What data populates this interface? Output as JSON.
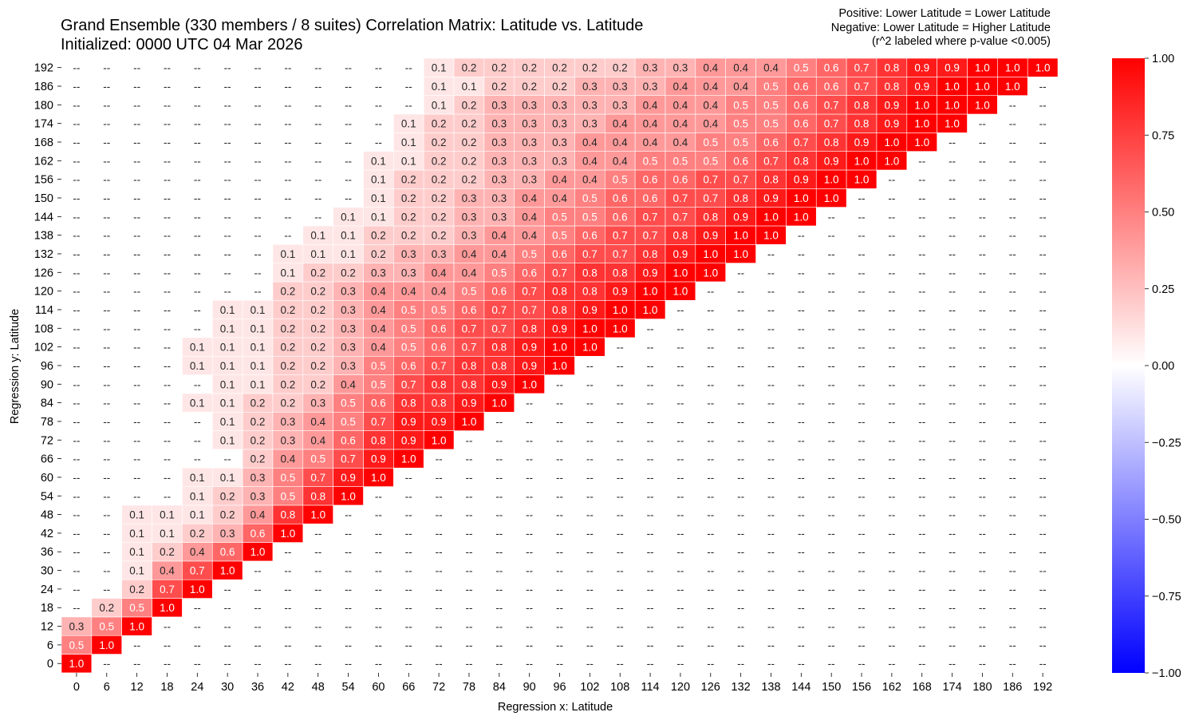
{
  "chart_data": {
    "type": "heatmap",
    "title": "Grand Ensemble (330 members / 8 suites) Correlation Matrix: Latitude vs. Latitude",
    "subtitle": "Initialized: 0000 UTC 04 Mar 2026",
    "annotation": [
      "Positive: Lower Latitude = Lower Latitude",
      "Negative: Lower Latitude = Higher Latitude",
      "(r^2 labeled where p-value <0.005)"
    ],
    "xlabel": "Regression x: Latitude",
    "ylabel": "Regression y: Latitude",
    "x": [
      0,
      6,
      12,
      18,
      24,
      30,
      36,
      42,
      48,
      54,
      60,
      66,
      72,
      78,
      84,
      90,
      96,
      102,
      108,
      114,
      120,
      126,
      132,
      138,
      144,
      150,
      156,
      162,
      168,
      174,
      180,
      186,
      192
    ],
    "y": [
      0,
      6,
      12,
      18,
      24,
      30,
      36,
      42,
      48,
      54,
      60,
      66,
      72,
      78,
      84,
      90,
      96,
      102,
      108,
      114,
      120,
      126,
      132,
      138,
      144,
      150,
      156,
      162,
      168,
      174,
      180,
      186,
      192
    ],
    "colorbar": {
      "vmin": -1.0,
      "vmax": 1.0,
      "ticks": [
        "1.00",
        "0.75",
        "0.50",
        "0.25",
        "0.00",
        "−0.25",
        "−0.50",
        "−0.75",
        "−1.00"
      ],
      "colors": [
        "#0000ff",
        "#ffffff",
        "#ff0000"
      ]
    },
    "blank_label": "--",
    "r2_labels": [
      [
        "1.0"
      ],
      [
        "0.5",
        "1.0"
      ],
      [
        "0.3",
        "0.5",
        "1.0"
      ],
      [
        "--",
        "0.2",
        "0.5",
        "1.0"
      ],
      [
        "--",
        "--",
        "0.2",
        "0.7",
        "1.0"
      ],
      [
        "--",
        "--",
        "0.1",
        "0.4",
        "0.7",
        "1.0"
      ],
      [
        "--",
        "--",
        "0.1",
        "0.2",
        "0.4",
        "0.6",
        "1.0"
      ],
      [
        "--",
        "--",
        "0.1",
        "0.1",
        "0.2",
        "0.3",
        "0.6",
        "1.0"
      ],
      [
        "--",
        "--",
        "0.1",
        "0.1",
        "0.1",
        "0.2",
        "0.4",
        "0.8",
        "1.0"
      ],
      [
        "--",
        "--",
        "--",
        "--",
        "0.1",
        "0.2",
        "0.3",
        "0.5",
        "0.8",
        "1.0"
      ],
      [
        "--",
        "--",
        "--",
        "--",
        "0.1",
        "0.1",
        "0.3",
        "0.5",
        "0.7",
        "0.9",
        "1.0"
      ],
      [
        "--",
        "--",
        "--",
        "--",
        "--",
        "--",
        "0.2",
        "0.4",
        "0.5",
        "0.7",
        "0.9",
        "1.0"
      ],
      [
        "--",
        "--",
        "--",
        "--",
        "--",
        "0.1",
        "0.2",
        "0.3",
        "0.4",
        "0.6",
        "0.8",
        "0.9",
        "1.0"
      ],
      [
        "--",
        "--",
        "--",
        "--",
        "--",
        "0.1",
        "0.2",
        "0.3",
        "0.4",
        "0.5",
        "0.7",
        "0.9",
        "0.9",
        "1.0"
      ],
      [
        "--",
        "--",
        "--",
        "--",
        "0.1",
        "0.1",
        "0.2",
        "0.2",
        "0.3",
        "0.5",
        "0.6",
        "0.8",
        "0.8",
        "0.9",
        "1.0"
      ],
      [
        "--",
        "--",
        "--",
        "--",
        "--",
        "0.1",
        "0.1",
        "0.2",
        "0.2",
        "0.4",
        "0.5",
        "0.7",
        "0.8",
        "0.8",
        "0.9",
        "1.0"
      ],
      [
        "--",
        "--",
        "--",
        "--",
        "0.1",
        "0.1",
        "0.1",
        "0.2",
        "0.2",
        "0.3",
        "0.5",
        "0.6",
        "0.7",
        "0.8",
        "0.8",
        "0.9",
        "1.0"
      ],
      [
        "--",
        "--",
        "--",
        "--",
        "0.1",
        "0.1",
        "0.1",
        "0.2",
        "0.2",
        "0.3",
        "0.4",
        "0.5",
        "0.6",
        "0.7",
        "0.8",
        "0.9",
        "1.0",
        "1.0"
      ],
      [
        "--",
        "--",
        "--",
        "--",
        "--",
        "0.1",
        "0.1",
        "0.2",
        "0.2",
        "0.3",
        "0.4",
        "0.5",
        "0.6",
        "0.7",
        "0.7",
        "0.8",
        "0.9",
        "1.0",
        "1.0"
      ],
      [
        "--",
        "--",
        "--",
        "--",
        "--",
        "0.1",
        "0.1",
        "0.2",
        "0.2",
        "0.3",
        "0.4",
        "0.5",
        "0.5",
        "0.6",
        "0.7",
        "0.7",
        "0.8",
        "0.9",
        "1.0",
        "1.0"
      ],
      [
        "--",
        "--",
        "--",
        "--",
        "--",
        "--",
        "--",
        "0.2",
        "0.2",
        "0.3",
        "0.4",
        "0.4",
        "0.4",
        "0.5",
        "0.6",
        "0.7",
        "0.8",
        "0.8",
        "0.9",
        "1.0",
        "1.0"
      ],
      [
        "--",
        "--",
        "--",
        "--",
        "--",
        "--",
        "--",
        "0.1",
        "0.2",
        "0.2",
        "0.3",
        "0.3",
        "0.4",
        "0.4",
        "0.5",
        "0.6",
        "0.7",
        "0.8",
        "0.8",
        "0.9",
        "1.0",
        "1.0"
      ],
      [
        "--",
        "--",
        "--",
        "--",
        "--",
        "--",
        "--",
        "0.1",
        "0.1",
        "0.1",
        "0.2",
        "0.3",
        "0.3",
        "0.4",
        "0.4",
        "0.5",
        "0.6",
        "0.7",
        "0.7",
        "0.8",
        "0.9",
        "1.0",
        "1.0"
      ],
      [
        "--",
        "--",
        "--",
        "--",
        "--",
        "--",
        "--",
        "--",
        "0.1",
        "0.1",
        "0.2",
        "0.2",
        "0.2",
        "0.3",
        "0.4",
        "0.4",
        "0.5",
        "0.6",
        "0.7",
        "0.7",
        "0.8",
        "0.9",
        "1.0",
        "1.0"
      ],
      [
        "--",
        "--",
        "--",
        "--",
        "--",
        "--",
        "--",
        "--",
        "--",
        "0.1",
        "0.1",
        "0.2",
        "0.2",
        "0.3",
        "0.3",
        "0.4",
        "0.5",
        "0.5",
        "0.6",
        "0.7",
        "0.7",
        "0.8",
        "0.9",
        "1.0",
        "1.0"
      ],
      [
        "--",
        "--",
        "--",
        "--",
        "--",
        "--",
        "--",
        "--",
        "--",
        "--",
        "0.1",
        "0.2",
        "0.2",
        "0.3",
        "0.3",
        "0.4",
        "0.4",
        "0.5",
        "0.6",
        "0.6",
        "0.7",
        "0.7",
        "0.8",
        "0.9",
        "1.0",
        "1.0"
      ],
      [
        "--",
        "--",
        "--",
        "--",
        "--",
        "--",
        "--",
        "--",
        "--",
        "--",
        "0.1",
        "0.2",
        "0.2",
        "0.2",
        "0.3",
        "0.3",
        "0.4",
        "0.4",
        "0.5",
        "0.6",
        "0.6",
        "0.7",
        "0.7",
        "0.8",
        "0.9",
        "1.0",
        "1.0"
      ],
      [
        "--",
        "--",
        "--",
        "--",
        "--",
        "--",
        "--",
        "--",
        "--",
        "--",
        "0.1",
        "0.1",
        "0.2",
        "0.2",
        "0.3",
        "0.3",
        "0.3",
        "0.4",
        "0.4",
        "0.5",
        "0.5",
        "0.5",
        "0.6",
        "0.7",
        "0.8",
        "0.9",
        "1.0",
        "1.0"
      ],
      [
        "--",
        "--",
        "--",
        "--",
        "--",
        "--",
        "--",
        "--",
        "--",
        "--",
        "--",
        "0.1",
        "0.2",
        "0.2",
        "0.3",
        "0.3",
        "0.3",
        "0.4",
        "0.4",
        "0.4",
        "0.4",
        "0.5",
        "0.5",
        "0.6",
        "0.7",
        "0.8",
        "0.9",
        "1.0",
        "1.0"
      ],
      [
        "--",
        "--",
        "--",
        "--",
        "--",
        "--",
        "--",
        "--",
        "--",
        "--",
        "--",
        "0.1",
        "0.2",
        "0.2",
        "0.3",
        "0.3",
        "0.3",
        "0.3",
        "0.4",
        "0.4",
        "0.4",
        "0.4",
        "0.5",
        "0.5",
        "0.6",
        "0.7",
        "0.8",
        "0.9",
        "1.0",
        "1.0"
      ],
      [
        "--",
        "--",
        "--",
        "--",
        "--",
        "--",
        "--",
        "--",
        "--",
        "--",
        "--",
        "--",
        "0.1",
        "0.2",
        "0.3",
        "0.3",
        "0.3",
        "0.3",
        "0.3",
        "0.4",
        "0.4",
        "0.4",
        "0.5",
        "0.5",
        "0.6",
        "0.7",
        "0.8",
        "0.9",
        "1.0",
        "1.0",
        "1.0"
      ],
      [
        "--",
        "--",
        "--",
        "--",
        "--",
        "--",
        "--",
        "--",
        "--",
        "--",
        "--",
        "--",
        "0.1",
        "0.1",
        "0.2",
        "0.2",
        "0.2",
        "0.3",
        "0.3",
        "0.3",
        "0.4",
        "0.4",
        "0.4",
        "0.5",
        "0.6",
        "0.6",
        "0.7",
        "0.8",
        "0.9",
        "1.0",
        "1.0",
        "1.0"
      ],
      [
        "--",
        "--",
        "--",
        "--",
        "--",
        "--",
        "--",
        "--",
        "--",
        "--",
        "--",
        "--",
        "0.1",
        "0.2",
        "0.2",
        "0.2",
        "0.2",
        "0.2",
        "0.2",
        "0.3",
        "0.3",
        "0.4",
        "0.4",
        "0.4",
        "0.5",
        "0.6",
        "0.7",
        "0.8",
        "0.9",
        "0.9",
        "1.0",
        "1.0",
        "1.0"
      ]
    ]
  }
}
